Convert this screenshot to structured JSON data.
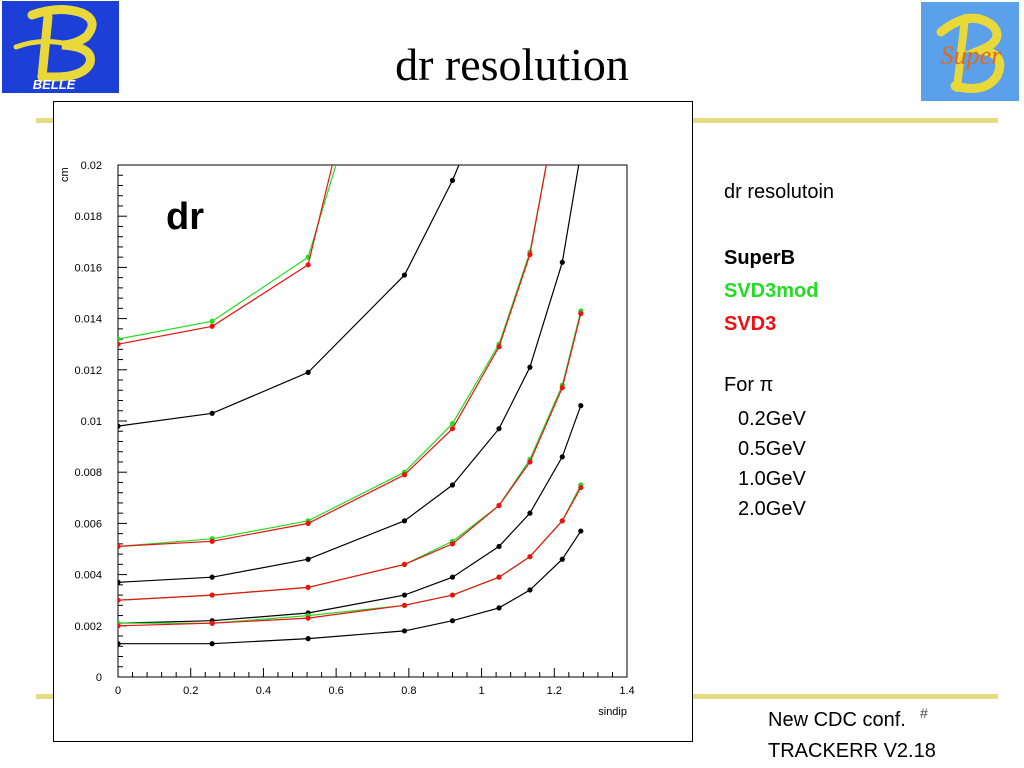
{
  "slide": {
    "title": "dr resolution",
    "left_logo_text": "BELLE",
    "right_logo_text": "Super",
    "page_number": "#",
    "footer": [
      "New CDC conf.",
      "TRACKERR V2.18"
    ]
  },
  "colors": {
    "SuperB": "#000000",
    "SVD3mod": "#22dd22",
    "SVD3": "#ee1111",
    "accent_bar": "#e6db82",
    "logo_blue": "#1c3fd8",
    "logo_yellow": "#e8d83a"
  },
  "legend": {
    "heading": "dr resolutoin",
    "entries": [
      {
        "label": "SuperB",
        "color": "#000000"
      },
      {
        "label": "SVD3mod",
        "color": "#22dd22"
      },
      {
        "label": "SVD3",
        "color": "#ee1111"
      }
    ],
    "particle_label": "For π",
    "momenta": [
      "0.2GeV",
      "0.5GeV",
      "1.0GeV",
      "2.0GeV"
    ]
  },
  "chart_data": {
    "type": "line",
    "title": "dr",
    "xlabel": "sindip",
    "ylabel": "cm",
    "xlim": [
      0,
      1.4
    ],
    "ylim": [
      0,
      0.02
    ],
    "xticks": [
      "0",
      "0.2",
      "0.4",
      "0.6",
      "0.8",
      "1",
      "1.2",
      "1.4"
    ],
    "yticks": [
      "0",
      "0.002",
      "0.004",
      "0.006",
      "0.008",
      "0.01",
      "0.012",
      "0.014",
      "0.016",
      "0.018",
      "0.02"
    ],
    "grid": false,
    "series": [
      {
        "name": "SVD3mod",
        "momentum": "0.2GeV",
        "color": "#22dd22",
        "x": [
          0,
          0.259,
          0.523,
          0.5992
        ],
        "y": [
          0.0132,
          0.0139,
          0.0164,
          0.02
        ]
      },
      {
        "name": "SVD3",
        "momentum": "0.2GeV",
        "color": "#ee1111",
        "x": [
          0,
          0.259,
          0.523,
          0.5895
        ],
        "y": [
          0.013,
          0.0137,
          0.0161,
          0.02
        ]
      },
      {
        "name": "SuperB",
        "momentum": "0.2GeV",
        "color": "#000000",
        "x": [
          0,
          0.259,
          0.523,
          0.788,
          0.92,
          0.9376
        ],
        "y": [
          0.0098,
          0.0103,
          0.0119,
          0.0157,
          0.0194,
          0.02
        ]
      },
      {
        "name": "SVD3mod",
        "momentum": "0.5GeV",
        "color": "#22dd22",
        "x": [
          0,
          0.259,
          0.523,
          0.788,
          0.92,
          1.048,
          1.133,
          1.178
        ],
        "y": [
          0.0051,
          0.0054,
          0.0061,
          0.008,
          0.0099,
          0.013,
          0.0166,
          0.02
        ]
      },
      {
        "name": "SVD3",
        "momentum": "0.5GeV",
        "color": "#ee1111",
        "x": [
          0,
          0.259,
          0.523,
          0.788,
          0.92,
          1.048,
          1.133,
          1.178
        ],
        "y": [
          0.0051,
          0.0053,
          0.006,
          0.0079,
          0.0097,
          0.0129,
          0.0165,
          0.02
        ]
      },
      {
        "name": "SuperB",
        "momentum": "0.5GeV",
        "color": "#000000",
        "x": [
          0,
          0.259,
          0.523,
          0.788,
          0.92,
          1.048,
          1.133,
          1.222,
          1.2671
        ],
        "y": [
          0.0037,
          0.0039,
          0.0046,
          0.0061,
          0.0075,
          0.0097,
          0.0121,
          0.0162,
          0.02
        ]
      },
      {
        "name": "SVD3mod",
        "momentum": "1.0GeV",
        "color": "#22dd22",
        "x": [
          0,
          0.259,
          0.523,
          0.788,
          0.92,
          1.048,
          1.133,
          1.222,
          1.273
        ],
        "y": [
          0.003,
          0.0032,
          0.0035,
          0.0044,
          0.0053,
          0.0067,
          0.0085,
          0.0114,
          0.0143
        ]
      },
      {
        "name": "SVD3",
        "momentum": "1.0GeV",
        "color": "#ee1111",
        "x": [
          0,
          0.259,
          0.523,
          0.788,
          0.92,
          1.048,
          1.133,
          1.222,
          1.273
        ],
        "y": [
          0.003,
          0.0032,
          0.0035,
          0.0044,
          0.0052,
          0.0067,
          0.0084,
          0.0113,
          0.0142
        ]
      },
      {
        "name": "SuperB",
        "momentum": "1.0GeV",
        "color": "#000000",
        "x": [
          0,
          0.259,
          0.523,
          0.788,
          0.92,
          1.048,
          1.133,
          1.222,
          1.273
        ],
        "y": [
          0.0021,
          0.0022,
          0.0025,
          0.0032,
          0.0039,
          0.0051,
          0.0064,
          0.0086,
          0.0106
        ]
      },
      {
        "name": "SVD3mod",
        "momentum": "2.0GeV",
        "color": "#22dd22",
        "x": [
          0,
          0.259,
          0.523,
          0.788,
          0.92,
          1.048,
          1.133,
          1.222,
          1.273
        ],
        "y": [
          0.0021,
          0.0021,
          0.0024,
          0.0028,
          0.0032,
          0.0039,
          0.0047,
          0.0061,
          0.0075
        ]
      },
      {
        "name": "SVD3",
        "momentum": "2.0GeV",
        "color": "#ee1111",
        "x": [
          0,
          0.259,
          0.523,
          0.788,
          0.92,
          1.048,
          1.133,
          1.222,
          1.273
        ],
        "y": [
          0.002,
          0.0021,
          0.0023,
          0.0028,
          0.0032,
          0.0039,
          0.0047,
          0.0061,
          0.0074
        ]
      },
      {
        "name": "SuperB",
        "momentum": "2.0GeV",
        "color": "#000000",
        "x": [
          0,
          0.259,
          0.523,
          0.788,
          0.92,
          1.048,
          1.133,
          1.222,
          1.273
        ],
        "y": [
          0.0013,
          0.0013,
          0.0015,
          0.0018,
          0.0022,
          0.0027,
          0.0034,
          0.0046,
          0.0057
        ]
      }
    ]
  }
}
